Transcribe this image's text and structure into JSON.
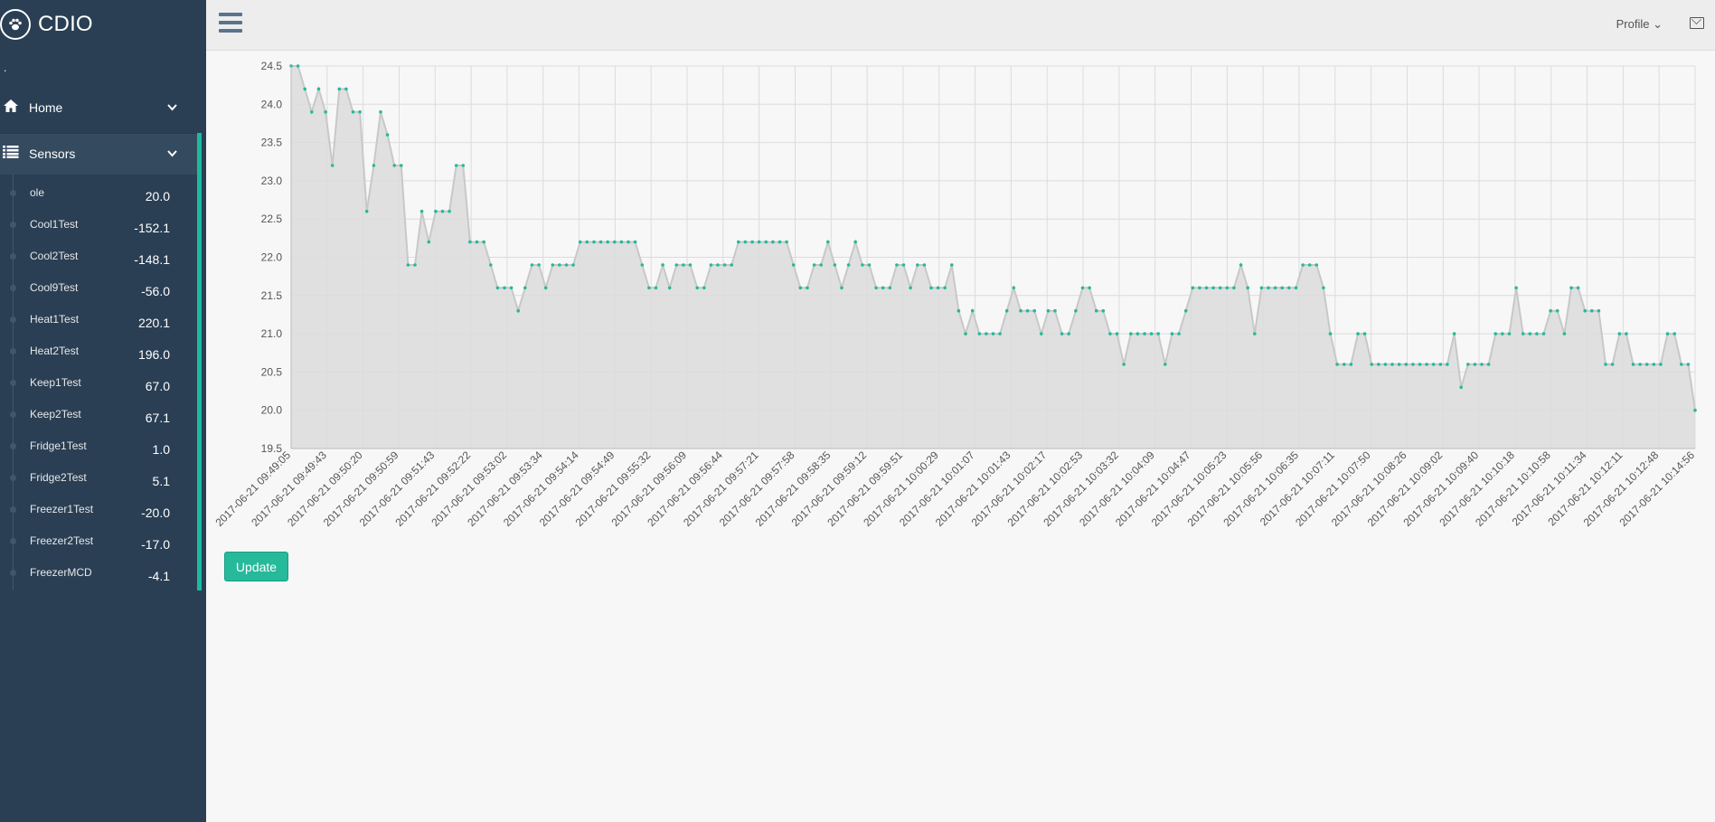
{
  "brand": {
    "name": "CDIO",
    "icon": "paw-icon"
  },
  "sidebar_dot": ".",
  "nav": {
    "home": {
      "label": "Home",
      "icon": "home-icon"
    },
    "sensors": {
      "label": "Sensors",
      "icon": "list-icon"
    }
  },
  "sensors": [
    {
      "name": "ole",
      "value": "20.0"
    },
    {
      "name": "Cool1Test",
      "value": "-152.1"
    },
    {
      "name": "Cool2Test",
      "value": "-148.1"
    },
    {
      "name": "Cool9Test",
      "value": "-56.0"
    },
    {
      "name": "Heat1Test",
      "value": "220.1"
    },
    {
      "name": "Heat2Test",
      "value": "196.0"
    },
    {
      "name": "Keep1Test",
      "value": "67.0"
    },
    {
      "name": "Keep2Test",
      "value": "67.1"
    },
    {
      "name": "Fridge1Test",
      "value": "1.0"
    },
    {
      "name": "Fridge2Test",
      "value": "5.1"
    },
    {
      "name": "Freezer1Test",
      "value": "-20.0"
    },
    {
      "name": "Freezer2Test",
      "value": "-17.0"
    },
    {
      "name": "FreezerMCD",
      "value": "-4.1"
    }
  ],
  "topbar": {
    "profile_label": "Profile",
    "profile_caret": "⌄"
  },
  "update_button": "Update",
  "colors": {
    "accent": "#1abb9c",
    "sidebar": "#2a3f54",
    "point": "#26b99a",
    "area": "#dcdcdc"
  },
  "chart_data": {
    "type": "area",
    "ylim": [
      19.5,
      24.5
    ],
    "y_ticks": [
      "24.5",
      "24.0",
      "23.5",
      "23.0",
      "22.5",
      "22.0",
      "21.5",
      "21.0",
      "20.5",
      "20.0",
      "19.5"
    ],
    "x_tick_labels": [
      "2017-06-21 09:49:05",
      "2017-06-21 09:49:43",
      "2017-06-21 09:50:20",
      "2017-06-21 09:50:59",
      "2017-06-21 09:51:43",
      "2017-06-21 09:52:22",
      "2017-06-21 09:53:02",
      "2017-06-21 09:53:34",
      "2017-06-21 09:54:14",
      "2017-06-21 09:54:49",
      "2017-06-21 09:55:32",
      "2017-06-21 09:56:09",
      "2017-06-21 09:56:44",
      "2017-06-21 09:57:21",
      "2017-06-21 09:57:58",
      "2017-06-21 09:58:35",
      "2017-06-21 09:59:12",
      "2017-06-21 09:59:51",
      "2017-06-21 10:00:29",
      "2017-06-21 10:01:07",
      "2017-06-21 10:01:43",
      "2017-06-21 10:02:17",
      "2017-06-21 10:02:53",
      "2017-06-21 10:03:32",
      "2017-06-21 10:04:09",
      "2017-06-21 10:04:47",
      "2017-06-21 10:05:23",
      "2017-06-21 10:05:56",
      "2017-06-21 10:06:35",
      "2017-06-21 10:07:11",
      "2017-06-21 10:07:50",
      "2017-06-21 10:08:26",
      "2017-06-21 10:09:02",
      "2017-06-21 10:09:40",
      "2017-06-21 10:10:18",
      "2017-06-21 10:10:58",
      "2017-06-21 10:11:34",
      "2017-06-21 10:12:11",
      "2017-06-21 10:12:48",
      "2017-06-21 10:14:56"
    ],
    "values": [
      24.5,
      24.5,
      24.2,
      23.9,
      24.2,
      23.9,
      23.2,
      24.2,
      24.2,
      23.9,
      23.9,
      22.6,
      23.2,
      23.9,
      23.6,
      23.2,
      23.2,
      21.9,
      21.9,
      22.6,
      22.2,
      22.6,
      22.6,
      22.6,
      23.2,
      23.2,
      22.2,
      22.2,
      22.2,
      21.9,
      21.6,
      21.6,
      21.6,
      21.3,
      21.6,
      21.9,
      21.9,
      21.6,
      21.9,
      21.9,
      21.9,
      21.9,
      22.2,
      22.2,
      22.2,
      22.2,
      22.2,
      22.2,
      22.2,
      22.2,
      22.2,
      21.9,
      21.6,
      21.6,
      21.9,
      21.6,
      21.9,
      21.9,
      21.9,
      21.6,
      21.6,
      21.9,
      21.9,
      21.9,
      21.9,
      22.2,
      22.2,
      22.2,
      22.2,
      22.2,
      22.2,
      22.2,
      22.2,
      21.9,
      21.6,
      21.6,
      21.9,
      21.9,
      22.2,
      21.9,
      21.6,
      21.9,
      22.2,
      21.9,
      21.9,
      21.6,
      21.6,
      21.6,
      21.9,
      21.9,
      21.6,
      21.9,
      21.9,
      21.6,
      21.6,
      21.6,
      21.9,
      21.3,
      21.0,
      21.3,
      21.0,
      21.0,
      21.0,
      21.0,
      21.3,
      21.6,
      21.3,
      21.3,
      21.3,
      21.0,
      21.3,
      21.3,
      21.0,
      21.0,
      21.3,
      21.6,
      21.6,
      21.3,
      21.3,
      21.0,
      21.0,
      20.6,
      21.0,
      21.0,
      21.0,
      21.0,
      21.0,
      20.6,
      21.0,
      21.0,
      21.3,
      21.6,
      21.6,
      21.6,
      21.6,
      21.6,
      21.6,
      21.6,
      21.9,
      21.6,
      21.0,
      21.6,
      21.6,
      21.6,
      21.6,
      21.6,
      21.6,
      21.9,
      21.9,
      21.9,
      21.6,
      21.0,
      20.6,
      20.6,
      20.6,
      21.0,
      21.0,
      20.6,
      20.6,
      20.6,
      20.6,
      20.6,
      20.6,
      20.6,
      20.6,
      20.6,
      20.6,
      20.6,
      20.6,
      21.0,
      20.3,
      20.6,
      20.6,
      20.6,
      20.6,
      21.0,
      21.0,
      21.0,
      21.6,
      21.0,
      21.0,
      21.0,
      21.0,
      21.3,
      21.3,
      21.0,
      21.6,
      21.6,
      21.3,
      21.3,
      21.3,
      20.6,
      20.6,
      21.0,
      21.0,
      20.6,
      20.6,
      20.6,
      20.6,
      20.6,
      21.0,
      21.0,
      20.6,
      20.6,
      20.0
    ]
  }
}
